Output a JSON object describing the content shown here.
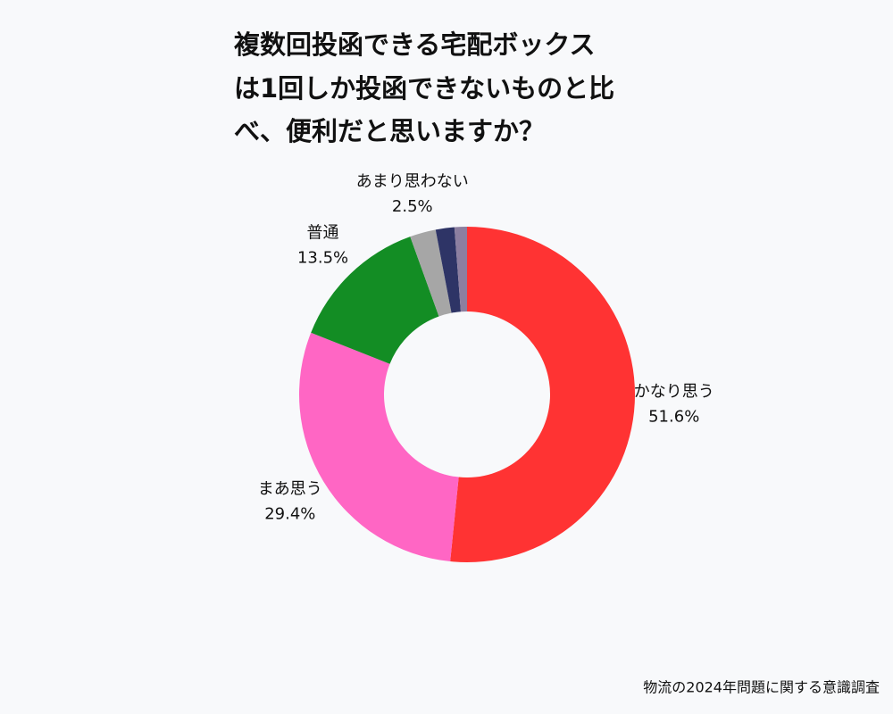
{
  "chart_data": {
    "type": "donut",
    "title": [
      "複数回投函できる宅配ボックス",
      "は1回しか投函できないものと比",
      "べ、便利だと思いますか？"
    ],
    "categories": [
      "かなり思う",
      "まあ思う",
      "普通",
      "あまり思わない",
      null,
      null
    ],
    "values": [
      51.6,
      29.4,
      13.5,
      2.5,
      1.8,
      1.2
    ],
    "value_labels": [
      "51.6%",
      "29.4%",
      "13.5%",
      "2.5%",
      null,
      null
    ],
    "colors": [
      "#ff3333",
      "#ff66c4",
      "#138d24",
      "#a6a6a6",
      "#2e3466",
      "#8c7fa0"
    ],
    "source": "物流の2024年問題に関する意識調査"
  }
}
